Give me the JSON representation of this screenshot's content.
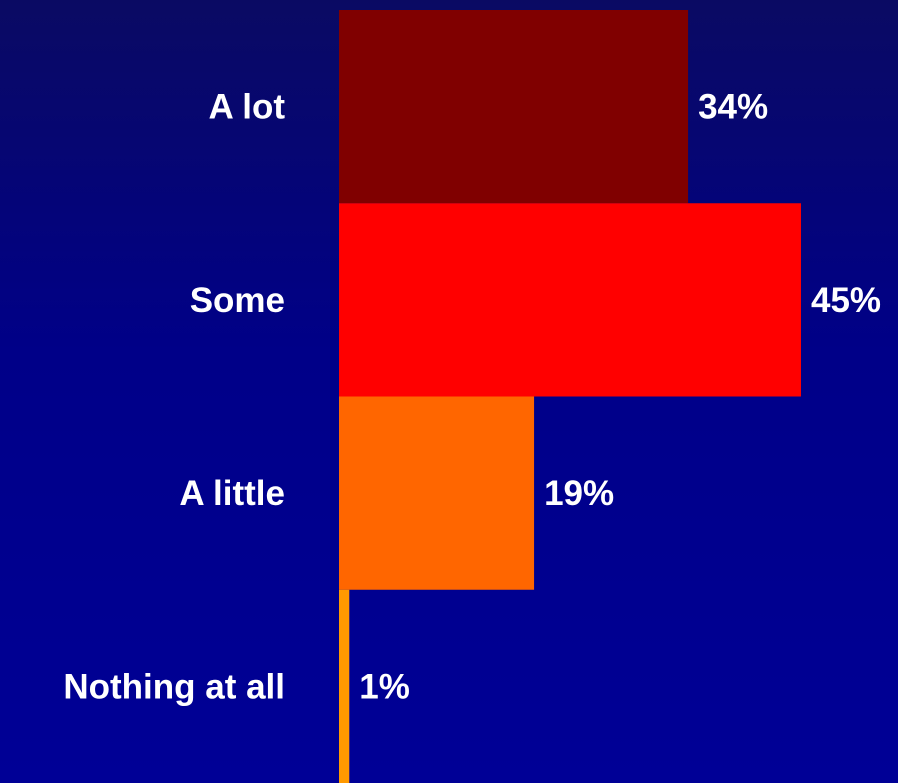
{
  "chart_data": {
    "type": "bar",
    "orientation": "horizontal",
    "categories": [
      "A lot",
      "Some",
      "A little",
      "Nothing at all"
    ],
    "values": [
      34,
      45,
      19,
      1
    ],
    "value_labels": [
      "34%",
      "45%",
      "19%",
      "1%"
    ],
    "colors": [
      "#800000",
      "#ff0000",
      "#ff6600",
      "#ff9900"
    ],
    "xlim": [
      0,
      45
    ],
    "grid": false,
    "legend": "none",
    "background": "#000088"
  }
}
